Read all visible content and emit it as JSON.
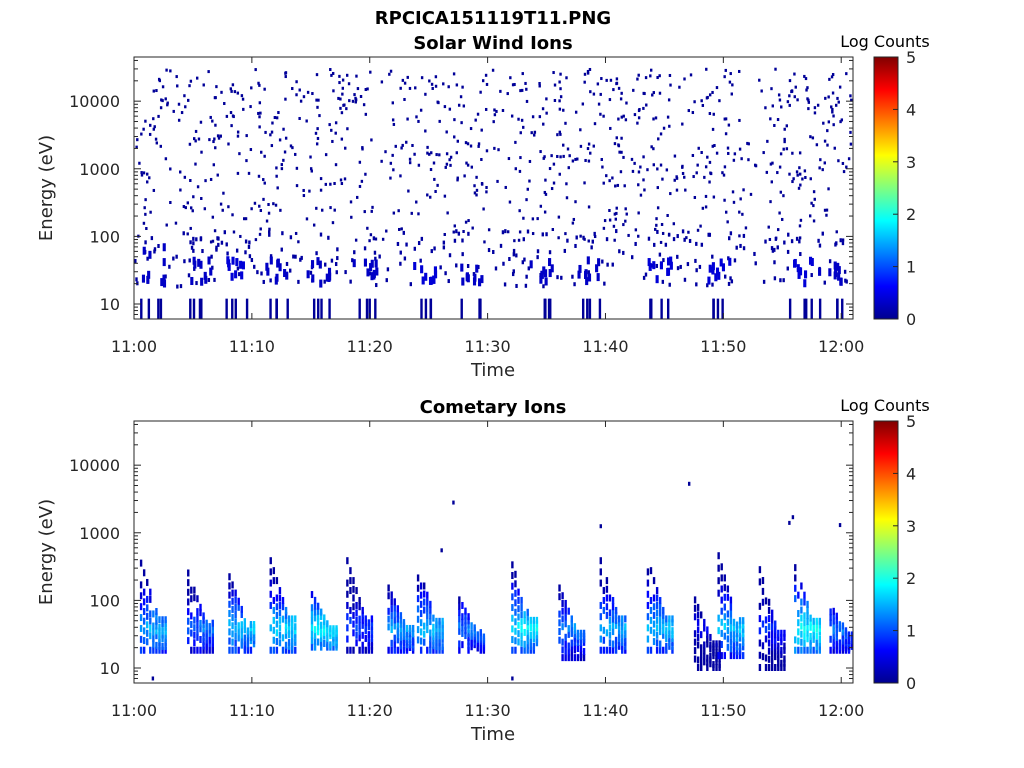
{
  "figure": {
    "filename_title": "RPCICA151119T11.PNG"
  },
  "chart_data": [
    {
      "type": "heatmap",
      "title": "Solar Wind Ions",
      "xlabel": "Time",
      "ylabel": "Energy (eV)",
      "x_ticks": [
        "11:00",
        "11:10",
        "11:20",
        "11:30",
        "11:40",
        "11:50",
        "12:00"
      ],
      "x_range_minutes": [
        0,
        61
      ],
      "y_scale": "log",
      "y_ticks": [
        "10",
        "100",
        "1000",
        "10000"
      ],
      "y_range": [
        6,
        45000
      ],
      "colorbar": {
        "label": "Log Counts",
        "ticks": [
          "0",
          "1",
          "2",
          "3",
          "4",
          "5"
        ],
        "range": [
          0,
          5
        ],
        "colormap": "jet"
      },
      "grid": false,
      "description_of_data": "Sparse single-count (log counts ~0) hits scattered 100–30000 eV; denser low-level clusters near 20–50 eV at intervals",
      "low_energy_bursts": [
        {
          "t": 1.5,
          "e_lo": 20,
          "e_hi": 70,
          "level": 0.3
        },
        {
          "t": 5.5,
          "e_lo": 20,
          "e_hi": 45,
          "level": 0.3
        },
        {
          "t": 8.5,
          "e_lo": 20,
          "e_hi": 45,
          "level": 0.4
        },
        {
          "t": 12.0,
          "e_lo": 20,
          "e_hi": 45,
          "level": 0.3
        },
        {
          "t": 15.5,
          "e_lo": 20,
          "e_hi": 45,
          "level": 0.3
        },
        {
          "t": 19.5,
          "e_lo": 20,
          "e_hi": 45,
          "level": 0.3
        },
        {
          "t": 24.5,
          "e_lo": 20,
          "e_hi": 45,
          "level": 0.4
        },
        {
          "t": 28.5,
          "e_lo": 20,
          "e_hi": 45,
          "level": 0.3
        },
        {
          "t": 34.5,
          "e_lo": 20,
          "e_hi": 45,
          "level": 0.3
        },
        {
          "t": 38.5,
          "e_lo": 20,
          "e_hi": 45,
          "level": 0.3
        },
        {
          "t": 44.5,
          "e_lo": 20,
          "e_hi": 45,
          "level": 0.4
        },
        {
          "t": 49.5,
          "e_lo": 20,
          "e_hi": 45,
          "level": 0.4
        },
        {
          "t": 56.5,
          "e_lo": 20,
          "e_hi": 45,
          "level": 0.4
        },
        {
          "t": 59.0,
          "e_lo": 20,
          "e_hi": 45,
          "level": 0.3
        }
      ],
      "sparse_hits": {
        "count": 900,
        "e_min": 80,
        "e_max": 30000,
        "level": 0.05
      }
    },
    {
      "type": "heatmap",
      "title": "Cometary Ions",
      "xlabel": "Time",
      "ylabel": "Energy (eV)",
      "x_ticks": [
        "11:00",
        "11:10",
        "11:20",
        "11:30",
        "11:40",
        "11:50",
        "12:00"
      ],
      "x_range_minutes": [
        0,
        61
      ],
      "y_scale": "log",
      "y_ticks": [
        "10",
        "100",
        "1000",
        "10000"
      ],
      "y_range": [
        6,
        45000
      ],
      "colorbar": {
        "label": "Log Counts",
        "ticks": [
          "0",
          "1",
          "2",
          "3",
          "4",
          "5"
        ],
        "range": [
          0,
          5
        ],
        "colormap": "jet"
      },
      "grid": false,
      "description_of_data": "Quasi-periodic dispersed ion bursts from ~300 eV down to ~20 eV, peaking near 30–50 eV at log counts ~1.5",
      "bursts": [
        {
          "t": 0.5,
          "e_lo": 18,
          "e_hi": 350,
          "peak": 1.5
        },
        {
          "t": 4.5,
          "e_lo": 18,
          "e_hi": 250,
          "peak": 1.2
        },
        {
          "t": 8.0,
          "e_lo": 18,
          "e_hi": 220,
          "peak": 1.6
        },
        {
          "t": 11.5,
          "e_lo": 18,
          "e_hi": 380,
          "peak": 1.7
        },
        {
          "t": 15.0,
          "e_lo": 20,
          "e_hi": 120,
          "peak": 1.8
        },
        {
          "t": 18.0,
          "e_lo": 18,
          "e_hi": 380,
          "peak": 1.0
        },
        {
          "t": 21.5,
          "e_lo": 18,
          "e_hi": 150,
          "peak": 1.4
        },
        {
          "t": 24.0,
          "e_lo": 18,
          "e_hi": 300,
          "peak": 1.6
        },
        {
          "t": 27.5,
          "e_lo": 18,
          "e_hi": 100,
          "peak": 1.2
        },
        {
          "t": 32.0,
          "e_lo": 18,
          "e_hi": 330,
          "peak": 1.8
        },
        {
          "t": 36.0,
          "e_lo": 14,
          "e_hi": 150,
          "peak": 1.3
        },
        {
          "t": 39.5,
          "e_lo": 18,
          "e_hi": 380,
          "peak": 1.5
        },
        {
          "t": 43.5,
          "e_lo": 18,
          "e_hi": 380,
          "peak": 1.6
        },
        {
          "t": 47.5,
          "e_lo": 10,
          "e_hi": 100,
          "peak": 0.6
        },
        {
          "t": 49.5,
          "e_lo": 15,
          "e_hi": 450,
          "peak": 1.6
        },
        {
          "t": 53.0,
          "e_lo": 10,
          "e_hi": 280,
          "peak": 0.9
        },
        {
          "t": 56.0,
          "e_lo": 18,
          "e_hi": 300,
          "peak": 1.9
        },
        {
          "t": 59.0,
          "e_lo": 18,
          "e_hi": 80,
          "peak": 1.2
        }
      ],
      "isolated_hits": [
        {
          "t": 27.0,
          "e": 2800
        },
        {
          "t": 47.0,
          "e": 5300
        },
        {
          "t": 39.5,
          "e": 1250
        },
        {
          "t": 55.8,
          "e": 1700
        },
        {
          "t": 59.8,
          "e": 1300
        },
        {
          "t": 26.0,
          "e": 550
        },
        {
          "t": 55.5,
          "e": 1400
        },
        {
          "t": 1.5,
          "e": 7
        },
        {
          "t": 32.0,
          "e": 7
        }
      ]
    }
  ]
}
